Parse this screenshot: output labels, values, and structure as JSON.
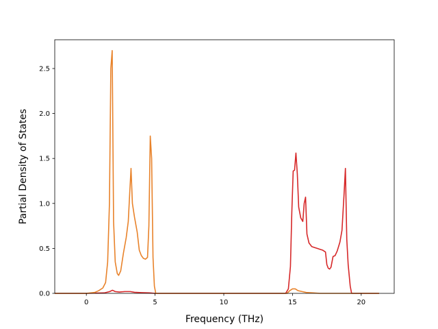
{
  "chart_data": {
    "type": "line",
    "title": "",
    "xlabel": "Frequency (THz)",
    "ylabel": "Partial Density of States",
    "xlim": [
      -2.3,
      22.4
    ],
    "ylim": [
      0,
      2.82
    ],
    "xticks": [
      0,
      5,
      10,
      15,
      20
    ],
    "yticks": [
      0.0,
      0.5,
      1.0,
      1.5,
      2.0,
      2.5
    ],
    "xtick_labels": [
      "0",
      "5",
      "10",
      "15",
      "20"
    ],
    "ytick_labels": [
      "0.0",
      "0.5",
      "1.0",
      "1.5",
      "2.0",
      "2.5"
    ],
    "grid": false,
    "legend": "none",
    "series": [
      {
        "color": "#d62728",
        "points": [
          [
            -2.3,
            0
          ],
          [
            0,
            0
          ],
          [
            1.3,
            0.005
          ],
          [
            1.7,
            0.02
          ],
          [
            1.9,
            0.035
          ],
          [
            2.1,
            0.02
          ],
          [
            2.4,
            0.015
          ],
          [
            2.8,
            0.02
          ],
          [
            3.2,
            0.02
          ],
          [
            3.5,
            0.012
          ],
          [
            4.0,
            0.008
          ],
          [
            4.6,
            0.005
          ],
          [
            5.0,
            0
          ],
          [
            14.5,
            0
          ],
          [
            14.7,
            0.05
          ],
          [
            14.85,
            0.3
          ],
          [
            14.95,
            0.9
          ],
          [
            15.05,
            1.36
          ],
          [
            15.15,
            1.37
          ],
          [
            15.25,
            1.56
          ],
          [
            15.35,
            1.33
          ],
          [
            15.45,
            0.96
          ],
          [
            15.6,
            0.84
          ],
          [
            15.75,
            0.8
          ],
          [
            15.85,
            1.0
          ],
          [
            15.95,
            1.07
          ],
          [
            16.05,
            0.66
          ],
          [
            16.2,
            0.56
          ],
          [
            16.4,
            0.52
          ],
          [
            16.6,
            0.51
          ],
          [
            16.8,
            0.5
          ],
          [
            17.0,
            0.49
          ],
          [
            17.2,
            0.48
          ],
          [
            17.4,
            0.46
          ],
          [
            17.5,
            0.32
          ],
          [
            17.6,
            0.28
          ],
          [
            17.7,
            0.27
          ],
          [
            17.8,
            0.29
          ],
          [
            17.95,
            0.41
          ],
          [
            18.1,
            0.42
          ],
          [
            18.25,
            0.47
          ],
          [
            18.45,
            0.57
          ],
          [
            18.6,
            0.7
          ],
          [
            18.75,
            1.1
          ],
          [
            18.85,
            1.39
          ],
          [
            18.95,
            0.6
          ],
          [
            19.05,
            0.32
          ],
          [
            19.2,
            0.08
          ],
          [
            19.3,
            0
          ],
          [
            21.3,
            0
          ]
        ]
      },
      {
        "color": "#e8822a",
        "points": [
          [
            -2.3,
            0
          ],
          [
            0,
            0
          ],
          [
            0.3,
            0.005
          ],
          [
            0.6,
            0.01
          ],
          [
            0.9,
            0.03
          ],
          [
            1.2,
            0.06
          ],
          [
            1.4,
            0.12
          ],
          [
            1.55,
            0.35
          ],
          [
            1.68,
            1.0
          ],
          [
            1.78,
            2.5
          ],
          [
            1.88,
            2.7
          ],
          [
            1.98,
            0.8
          ],
          [
            2.1,
            0.35
          ],
          [
            2.25,
            0.22
          ],
          [
            2.35,
            0.2
          ],
          [
            2.5,
            0.25
          ],
          [
            2.7,
            0.45
          ],
          [
            2.9,
            0.62
          ],
          [
            3.05,
            0.8
          ],
          [
            3.15,
            1.1
          ],
          [
            3.25,
            1.39
          ],
          [
            3.35,
            1.0
          ],
          [
            3.5,
            0.85
          ],
          [
            3.7,
            0.68
          ],
          [
            3.85,
            0.48
          ],
          [
            4.0,
            0.42
          ],
          [
            4.15,
            0.39
          ],
          [
            4.3,
            0.38
          ],
          [
            4.45,
            0.4
          ],
          [
            4.55,
            0.75
          ],
          [
            4.65,
            1.75
          ],
          [
            4.75,
            1.5
          ],
          [
            4.85,
            0.4
          ],
          [
            4.95,
            0.08
          ],
          [
            5.05,
            0
          ],
          [
            14.6,
            0
          ],
          [
            14.8,
            0.03
          ],
          [
            15.0,
            0.05
          ],
          [
            15.2,
            0.05
          ],
          [
            15.4,
            0.03
          ],
          [
            15.7,
            0.02
          ],
          [
            16.0,
            0.01
          ],
          [
            16.5,
            0.005
          ],
          [
            17.0,
            0
          ],
          [
            21.3,
            0
          ]
        ]
      }
    ]
  }
}
